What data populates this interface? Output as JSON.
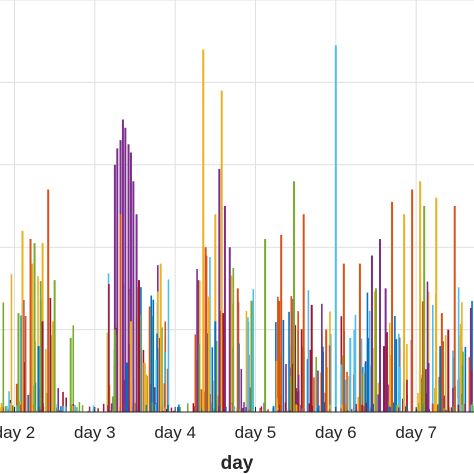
{
  "chart_data": {
    "type": "bar",
    "title": "",
    "xlabel": "day",
    "ylabel": "",
    "x_tick_labels": [
      "day 2",
      "day 3",
      "day 4",
      "day 5",
      "day 6",
      "day 7"
    ],
    "x_tick_values": [
      2,
      3,
      4,
      5,
      6,
      7
    ],
    "xlim": [
      1.82,
      7.72
    ],
    "ylim": [
      0,
      5
    ],
    "y_gridlines": [
      1,
      2,
      3,
      4,
      5
    ],
    "grid": true,
    "legend": "none",
    "colors": [
      "#0072BD",
      "#D95319",
      "#EDB120",
      "#7E2F8E",
      "#77AC30",
      "#4DBEEE",
      "#A2142F"
    ],
    "series": [
      {
        "color": "#7E2F8E",
        "x": [
          3.25,
          3.28,
          3.32,
          3.35,
          3.38,
          3.42,
          3.45,
          3.48,
          3.52,
          4.55,
          4.62,
          4.68,
          6.45,
          6.55,
          6.62
        ],
        "values": [
          3.0,
          3.2,
          3.3,
          3.55,
          3.45,
          3.25,
          3.15,
          2.8,
          2.4,
          2.95,
          2.5,
          2.0,
          1.9,
          2.1,
          1.5
        ]
      },
      {
        "color": "#EDB120",
        "x": [
          2.1,
          2.22,
          2.35,
          2.48,
          3.45,
          3.62,
          3.82,
          4.35,
          4.42,
          4.5,
          4.58,
          6.85,
          7.05,
          7.25
        ],
        "values": [
          2.2,
          1.8,
          2.05,
          1.1,
          1.1,
          0.6,
          1.8,
          4.4,
          1.4,
          2.4,
          3.9,
          2.4,
          2.8,
          2.6
        ]
      },
      {
        "color": "#D95319",
        "x": [
          2.2,
          2.42,
          3.32,
          4.38,
          4.78,
          5.32,
          5.6,
          5.88,
          6.1,
          6.3,
          6.7,
          6.95,
          7.32,
          7.48
        ],
        "values": [
          2.1,
          2.7,
          2.4,
          2.0,
          1.5,
          2.15,
          2.4,
          1.0,
          1.8,
          1.8,
          2.55,
          2.7,
          1.2,
          2.5
        ]
      },
      {
        "color": "#77AC30",
        "x": [
          2.05,
          2.25,
          2.5,
          2.7,
          3.25,
          4.95,
          5.12,
          5.48,
          6.5,
          7.1
        ],
        "values": [
          1.2,
          2.05,
          1.6,
          0.9,
          1.0,
          1.35,
          2.1,
          2.8,
          1.5,
          2.5
        ]
      },
      {
        "color": "#4DBEEE",
        "x": [
          6.0,
          6.18
        ],
        "values": [
          4.45,
          0.9
        ]
      },
      {
        "color": "#0072BD",
        "x": [
          2.3,
          3.4,
          4.5,
          6.4,
          7.3
        ],
        "values": [
          0.8,
          0.6,
          1.1,
          0.9,
          0.8
        ]
      },
      {
        "color": "#A2142F",
        "x": [
          2.35,
          3.55,
          4.6,
          5.7,
          6.6,
          7.4
        ],
        "values": [
          1.1,
          1.6,
          1.2,
          1.3,
          0.8,
          1.0
        ]
      }
    ]
  }
}
